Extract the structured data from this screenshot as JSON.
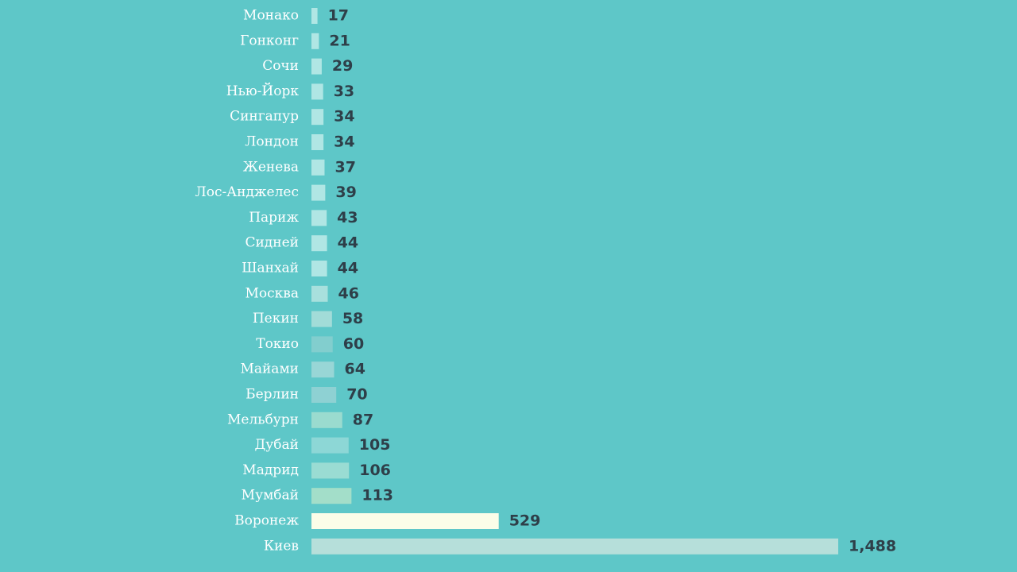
{
  "chart_data": {
    "type": "bar",
    "orientation": "horizontal",
    "categories": [
      "Монако",
      "Гонконг",
      "Сочи",
      "Нью-Йорк",
      "Сингапур",
      "Лондон",
      "Женева",
      "Лос-Анджелес",
      "Париж",
      "Сидней",
      "Шанхай",
      "Москва",
      "Пекин",
      "Токио",
      "Майами",
      "Берлин",
      "Мельбурн",
      "Дубай",
      "Мадрид",
      "Мумбай",
      "Воронеж",
      "Киев"
    ],
    "values": [
      17,
      21,
      29,
      33,
      34,
      34,
      37,
      39,
      43,
      44,
      44,
      46,
      58,
      60,
      64,
      70,
      87,
      105,
      106,
      113,
      529,
      1488
    ],
    "value_labels": [
      "17",
      "21",
      "29",
      "33",
      "34",
      "34",
      "37",
      "39",
      "43",
      "44",
      "44",
      "46",
      "58",
      "60",
      "64",
      "70",
      "87",
      "105",
      "106",
      "113",
      "529",
      "1,488"
    ],
    "bar_colors": [
      "#b0e6e4",
      "#b0e6e4",
      "#b0e6e4",
      "#b0e6e4",
      "#b0e6e4",
      "#b0e6e4",
      "#b0e6e4",
      "#b0e6e4",
      "#b0e6e4",
      "#b0e6e4",
      "#b0e6e4",
      "#a8e0dd",
      "#a2dcd8",
      "#82cece",
      "#98d6d6",
      "#8ed1d3",
      "#9adbcf",
      "#8dd7d6",
      "#9adcd3",
      "#a3dec9",
      "#fbfde8",
      "#b6dfda"
    ],
    "xlim": [
      0,
      1488
    ],
    "grid": false,
    "title": "",
    "xlabel": "",
    "ylabel": ""
  }
}
